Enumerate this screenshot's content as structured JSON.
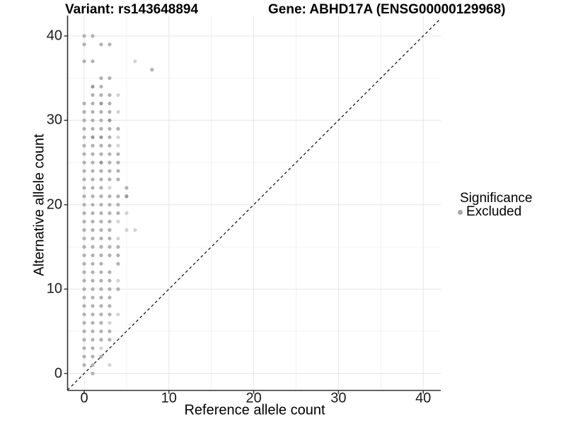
{
  "titles": {
    "variant": "Variant: rs143648894",
    "gene": "Gene: ABHD17A (ENSG00000129968)"
  },
  "legend": {
    "title": "Significance",
    "items": [
      {
        "label": "Excluded",
        "marker": "circle",
        "color": "#ababab"
      }
    ]
  },
  "chart_data": {
    "type": "scatter",
    "title": "Variant: rs143648894 / Gene: ABHD17A (ENSG00000129968)",
    "xlabel": "Reference allele count",
    "ylabel": "Alternative allele count",
    "xlim": [
      -2,
      42
    ],
    "ylim": [
      -2,
      42
    ],
    "x_ticks": [
      0,
      10,
      20,
      30,
      40
    ],
    "y_ticks": [
      0,
      10,
      20,
      30,
      40
    ],
    "minor_ticks": [
      5,
      15,
      25,
      35
    ],
    "grid": "major and minor light-gray gridlines on white panel",
    "legend_position": "right",
    "identity_line": {
      "style": "dashed",
      "slope": 1,
      "intercept": 0,
      "color": "#1a1a1a"
    },
    "shade_colors": {
      "d": "#999999",
      "m": "#b1b1b1",
      "l": "#d3d3d3"
    },
    "series": [
      {
        "name": "Excluded",
        "points": [
          [
            0,
            40,
            "m"
          ],
          [
            1,
            40,
            "m"
          ],
          [
            0,
            39,
            "m"
          ],
          [
            2,
            39,
            "m"
          ],
          [
            3,
            39,
            "m"
          ],
          [
            0,
            37,
            "m"
          ],
          [
            1,
            37,
            "m"
          ],
          [
            6,
            37,
            "l"
          ],
          [
            8,
            36,
            "m"
          ],
          [
            2,
            35,
            "m"
          ],
          [
            3,
            35,
            "m"
          ],
          [
            1,
            34,
            "d"
          ],
          [
            2,
            34,
            "m"
          ],
          [
            1,
            33,
            "m"
          ],
          [
            2,
            33,
            "m"
          ],
          [
            3,
            33,
            "m"
          ],
          [
            4,
            33,
            "l"
          ],
          [
            0,
            32,
            "m"
          ],
          [
            1,
            32,
            "m"
          ],
          [
            2,
            32,
            "d"
          ],
          [
            3,
            32,
            "m"
          ],
          [
            0,
            31,
            "m"
          ],
          [
            1,
            31,
            "m"
          ],
          [
            2,
            31,
            "m"
          ],
          [
            3,
            31,
            "m"
          ],
          [
            4,
            31,
            "l"
          ],
          [
            0,
            30,
            "m"
          ],
          [
            1,
            30,
            "m"
          ],
          [
            2,
            30,
            "m"
          ],
          [
            3,
            30,
            "d"
          ],
          [
            0,
            29,
            "m"
          ],
          [
            1,
            29,
            "m"
          ],
          [
            2,
            29,
            "m"
          ],
          [
            3,
            29,
            "m"
          ],
          [
            4,
            29,
            "m"
          ],
          [
            0,
            28,
            "m"
          ],
          [
            1,
            28,
            "d"
          ],
          [
            2,
            28,
            "d"
          ],
          [
            3,
            28,
            "m"
          ],
          [
            4,
            28,
            "l"
          ],
          [
            0,
            27,
            "m"
          ],
          [
            1,
            27,
            "m"
          ],
          [
            2,
            27,
            "m"
          ],
          [
            3,
            27,
            "m"
          ],
          [
            4,
            27,
            "l"
          ],
          [
            0,
            26,
            "m"
          ],
          [
            1,
            26,
            "m"
          ],
          [
            2,
            26,
            "m"
          ],
          [
            3,
            26,
            "m"
          ],
          [
            4,
            26,
            "m"
          ],
          [
            0,
            25,
            "m"
          ],
          [
            1,
            25,
            "m"
          ],
          [
            2,
            25,
            "d"
          ],
          [
            3,
            25,
            "m"
          ],
          [
            4,
            25,
            "m"
          ],
          [
            0,
            24,
            "m"
          ],
          [
            1,
            24,
            "m"
          ],
          [
            2,
            24,
            "m"
          ],
          [
            3,
            24,
            "m"
          ],
          [
            4,
            24,
            "m"
          ],
          [
            0,
            23,
            "m"
          ],
          [
            1,
            23,
            "m"
          ],
          [
            2,
            23,
            "m"
          ],
          [
            3,
            23,
            "m"
          ],
          [
            4,
            23,
            "m"
          ],
          [
            0,
            22,
            "m"
          ],
          [
            1,
            22,
            "m"
          ],
          [
            2,
            22,
            "m"
          ],
          [
            3,
            22,
            "l"
          ],
          [
            5,
            22,
            "m"
          ],
          [
            0,
            21,
            "m"
          ],
          [
            1,
            21,
            "m"
          ],
          [
            2,
            21,
            "m"
          ],
          [
            3,
            21,
            "m"
          ],
          [
            4,
            21,
            "m"
          ],
          [
            5,
            21,
            "d"
          ],
          [
            0,
            20,
            "m"
          ],
          [
            1,
            20,
            "m"
          ],
          [
            2,
            20,
            "m"
          ],
          [
            3,
            20,
            "m"
          ],
          [
            4,
            20,
            "m"
          ],
          [
            0,
            19,
            "m"
          ],
          [
            1,
            19,
            "m"
          ],
          [
            2,
            19,
            "m"
          ],
          [
            3,
            19,
            "m"
          ],
          [
            4,
            19,
            "m"
          ],
          [
            5,
            19,
            "l"
          ],
          [
            0,
            18,
            "m"
          ],
          [
            1,
            18,
            "m"
          ],
          [
            2,
            18,
            "m"
          ],
          [
            3,
            18,
            "m"
          ],
          [
            4,
            18,
            "l"
          ],
          [
            0,
            17,
            "m"
          ],
          [
            1,
            17,
            "m"
          ],
          [
            2,
            17,
            "m"
          ],
          [
            3,
            17,
            "m"
          ],
          [
            5,
            17,
            "l"
          ],
          [
            6,
            17,
            "l"
          ],
          [
            0,
            16,
            "m"
          ],
          [
            1,
            16,
            "m"
          ],
          [
            2,
            16,
            "m"
          ],
          [
            3,
            16,
            "m"
          ],
          [
            4,
            16,
            "l"
          ],
          [
            0,
            15,
            "m"
          ],
          [
            1,
            15,
            "m"
          ],
          [
            2,
            15,
            "m"
          ],
          [
            3,
            15,
            "m"
          ],
          [
            4,
            15,
            "m"
          ],
          [
            0,
            14,
            "m"
          ],
          [
            1,
            14,
            "m"
          ],
          [
            2,
            14,
            "m"
          ],
          [
            3,
            14,
            "m"
          ],
          [
            4,
            14,
            "m"
          ],
          [
            0,
            13,
            "m"
          ],
          [
            1,
            13,
            "m"
          ],
          [
            2,
            13,
            "m"
          ],
          [
            4,
            13,
            "m"
          ],
          [
            0,
            12,
            "m"
          ],
          [
            1,
            12,
            "m"
          ],
          [
            2,
            12,
            "m"
          ],
          [
            3,
            12,
            "m"
          ],
          [
            0,
            11,
            "m"
          ],
          [
            1,
            11,
            "m"
          ],
          [
            2,
            11,
            "m"
          ],
          [
            3,
            11,
            "m"
          ],
          [
            4,
            11,
            "l"
          ],
          [
            0,
            10,
            "m"
          ],
          [
            1,
            10,
            "m"
          ],
          [
            2,
            10,
            "m"
          ],
          [
            3,
            10,
            "m"
          ],
          [
            4,
            10,
            "m"
          ],
          [
            0,
            9,
            "m"
          ],
          [
            1,
            9,
            "m"
          ],
          [
            2,
            9,
            "m"
          ],
          [
            3,
            9,
            "m"
          ],
          [
            0,
            8,
            "m"
          ],
          [
            1,
            8,
            "m"
          ],
          [
            2,
            8,
            "m"
          ],
          [
            3,
            8,
            "m"
          ],
          [
            0,
            7,
            "m"
          ],
          [
            1,
            7,
            "m"
          ],
          [
            2,
            7,
            "m"
          ],
          [
            3,
            7,
            "m"
          ],
          [
            4,
            7,
            "l"
          ],
          [
            0,
            6,
            "m"
          ],
          [
            1,
            6,
            "m"
          ],
          [
            2,
            6,
            "m"
          ],
          [
            3,
            6,
            "l"
          ],
          [
            0,
            5,
            "m"
          ],
          [
            1,
            5,
            "m"
          ],
          [
            2,
            5,
            "m"
          ],
          [
            3,
            5,
            "m"
          ],
          [
            0,
            4,
            "m"
          ],
          [
            1,
            4,
            "m"
          ],
          [
            2,
            4,
            "m"
          ],
          [
            3,
            4,
            "m"
          ],
          [
            0,
            3,
            "m"
          ],
          [
            1,
            3,
            "m"
          ],
          [
            2,
            3,
            "l"
          ],
          [
            0,
            2,
            "m"
          ],
          [
            1,
            2,
            "m"
          ],
          [
            2,
            2,
            "m"
          ],
          [
            0,
            1,
            "m"
          ],
          [
            1,
            1,
            "m"
          ],
          [
            3,
            1,
            "l"
          ],
          [
            1,
            0,
            "m"
          ]
        ]
      }
    ]
  }
}
